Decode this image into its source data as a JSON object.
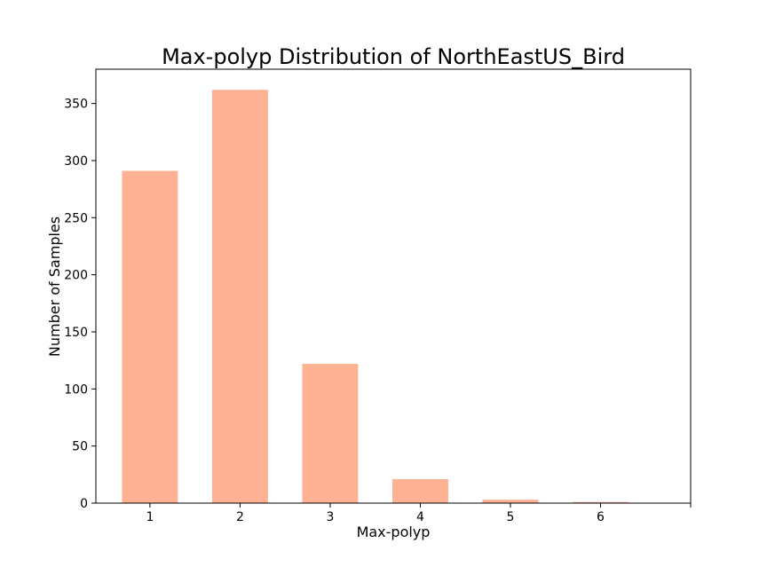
{
  "chart_data": {
    "type": "bar",
    "title": "Max-polyp Distribution of NorthEastUS_Bird",
    "xlabel": "Max-polyp",
    "ylabel": "Number of Samples",
    "categories": [
      "1",
      "2",
      "3",
      "4",
      "5",
      "6"
    ],
    "values": [
      291,
      362,
      122,
      21,
      3,
      1
    ],
    "ylim": [
      0,
      380
    ],
    "yticks": [
      0,
      50,
      100,
      150,
      200,
      250,
      300,
      350
    ],
    "grid": false,
    "bar_color": "#ffb193"
  }
}
